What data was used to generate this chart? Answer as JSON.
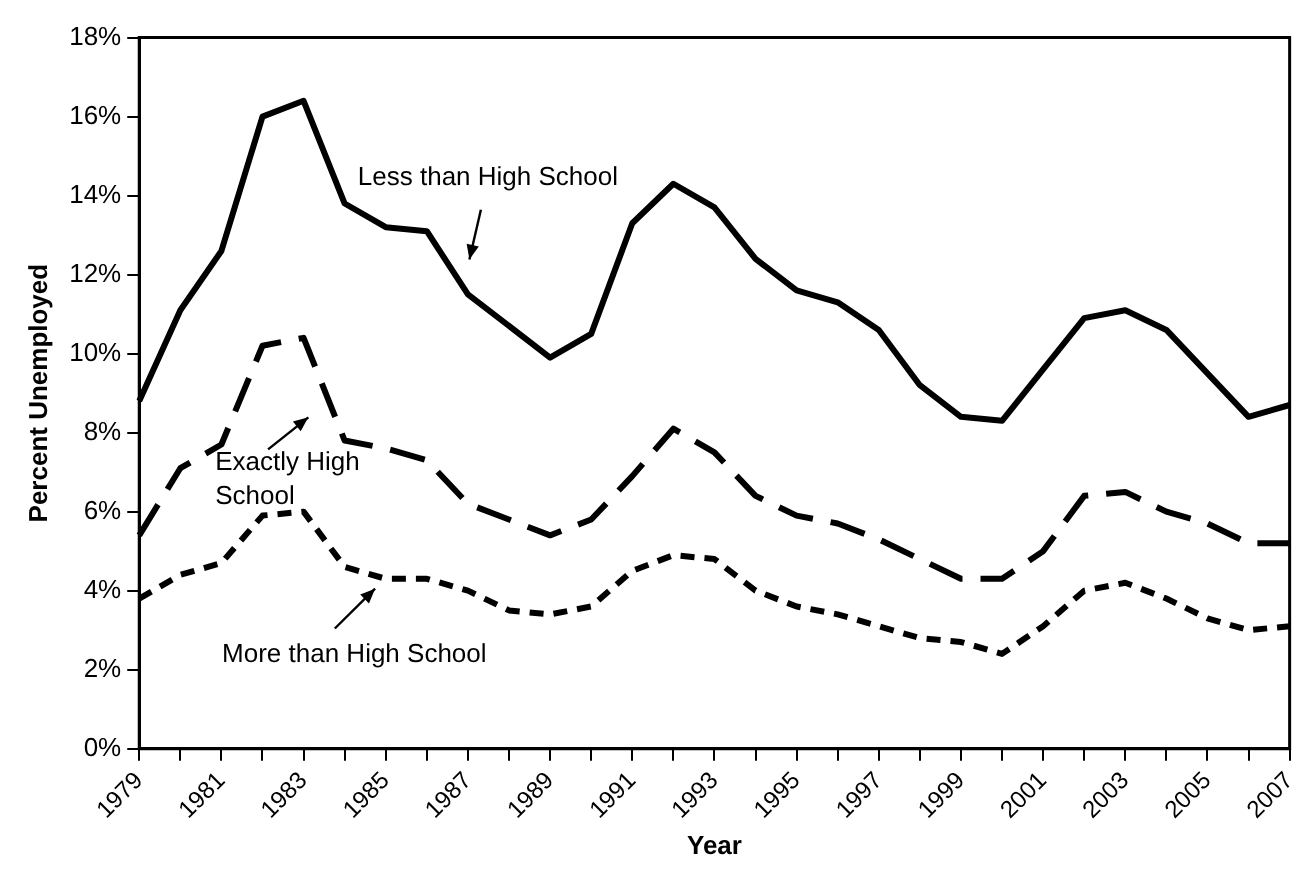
{
  "chart_data": {
    "type": "line",
    "xlabel": "Year",
    "ylabel": "Percent Unemployed",
    "categories": [
      "1979",
      null,
      "1981",
      null,
      "1983",
      null,
      "1985",
      null,
      "1987",
      null,
      "1989",
      null,
      "1991",
      null,
      "1993",
      null,
      "1995",
      null,
      "1997",
      null,
      "1999",
      null,
      "2001",
      null,
      "2003",
      null,
      "2005",
      null,
      "2007"
    ],
    "series": [
      {
        "color": "#000000",
        "line_style": "solid",
        "values": [
          8.8,
          11.1,
          12.6,
          16.0,
          16.4,
          13.8,
          13.2,
          13.1,
          11.5,
          10.7,
          9.9,
          10.5,
          13.3,
          14.3,
          13.7,
          12.4,
          11.6,
          11.3,
          10.6,
          9.2,
          8.4,
          8.3,
          9.6,
          10.9,
          11.1,
          10.6,
          9.5,
          8.4,
          8.7
        ]
      },
      {
        "color": "#000000",
        "line_style": "dashed",
        "values": [
          5.4,
          7.1,
          7.7,
          10.2,
          10.4,
          7.8,
          7.6,
          7.3,
          6.2,
          5.8,
          5.4,
          5.8,
          6.9,
          8.1,
          7.5,
          6.4,
          5.9,
          5.7,
          5.3,
          4.8,
          4.3,
          4.3,
          5.0,
          6.4,
          6.5,
          6.0,
          5.7,
          5.2,
          5.2
        ]
      },
      {
        "color": "#000000",
        "line_style": "dotted",
        "values": [
          3.8,
          4.4,
          4.7,
          5.9,
          6.0,
          4.6,
          4.3,
          4.3,
          4.0,
          3.5,
          3.4,
          3.6,
          4.5,
          4.9,
          4.8,
          4.0,
          3.6,
          3.4,
          3.1,
          2.8,
          2.7,
          2.4,
          3.1,
          4.0,
          4.2,
          3.8,
          3.3,
          3.0,
          3.1
        ]
      }
    ],
    "ylim": [
      0,
      18
    ],
    "yticks": [
      {
        "value": 0,
        "label": "0%"
      },
      {
        "value": 2,
        "label": "2%"
      },
      {
        "value": 4,
        "label": "4%"
      },
      {
        "value": 6,
        "label": "6%"
      },
      {
        "value": 8,
        "label": "8%"
      },
      {
        "value": 10,
        "label": "10%"
      },
      {
        "value": 12,
        "label": "12%"
      },
      {
        "value": 14,
        "label": "14%"
      },
      {
        "value": 16,
        "label": "16%"
      },
      {
        "value": 18,
        "label": "18%"
      }
    ],
    "grid": false,
    "legend": false,
    "marker": "none",
    "annotations": [
      "Less than High School",
      "Exactly High School",
      "More than High School"
    ]
  }
}
